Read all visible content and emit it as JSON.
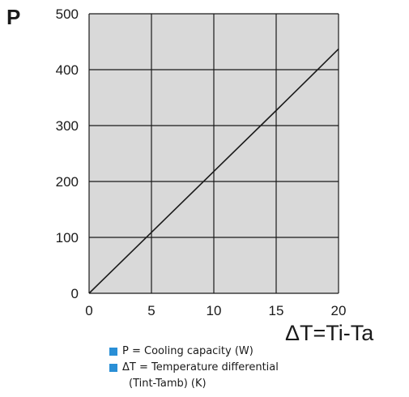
{
  "colors": {
    "plot_background": "#d9d9d9",
    "grid": "#1a1a1a",
    "line": "#1a1a1a",
    "legend_swatch": "#2a8fd6"
  },
  "chart_data": {
    "type": "line",
    "title": "",
    "ylabel": "P",
    "xlabel": "ΔT=Ti-Ta",
    "xlim": [
      0,
      20
    ],
    "ylim": [
      0,
      500
    ],
    "x_ticks": [
      "0",
      "5",
      "10",
      "15",
      "20"
    ],
    "y_ticks": [
      "0",
      "100",
      "200",
      "300",
      "400",
      "500"
    ],
    "grid": true,
    "series": [
      {
        "x": [
          0,
          5,
          10,
          15,
          20
        ],
        "values": [
          0,
          109,
          218,
          327,
          437
        ]
      }
    ]
  },
  "legend": {
    "items": [
      {
        "line1": "P = Cooling capacity (W)",
        "line2": ""
      },
      {
        "line1": "ΔT = Temperature differential",
        "line2": "(Tint-Tamb) (K)"
      }
    ]
  }
}
